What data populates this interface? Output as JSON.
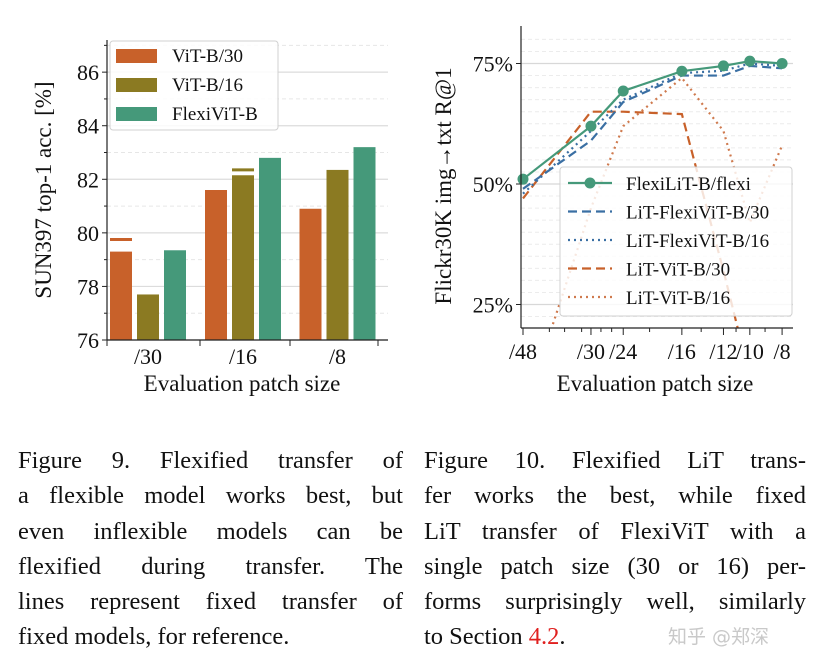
{
  "figure_left": {
    "caption_lines": [
      "Figure 9.  Flexified transfer of",
      "a flexible model works best, but",
      "even inflexible models can be",
      "flexified during transfer.  The",
      "lines represent fixed transfer of",
      "fixed models, for reference."
    ]
  },
  "figure_right": {
    "caption_lines": [
      "Figure 10.  Flexified LiT trans-",
      "fer works the best, while fixed",
      "LiT transfer of FlexiViT with a",
      "single patch size (30 or 16) per-",
      "forms surprisingly well, similarly"
    ],
    "caption_last_prefix": "to Section ",
    "caption_ref": "4.2",
    "caption_last_suffix": "."
  },
  "watermark": "知乎 @郑深",
  "chart_data": [
    {
      "type": "bar",
      "xlabel": "Evaluation patch size",
      "ylabel": "SUN397 top-1 acc. [%]",
      "categories": [
        "/30",
        "/16",
        "/8"
      ],
      "ylim": [
        76,
        87.2
      ],
      "yticks": [
        76,
        78,
        80,
        82,
        84,
        86
      ],
      "ytick_labels": [
        "76",
        "78",
        "80",
        "82",
        "84",
        "86"
      ],
      "grid": true,
      "legend_position": "top-left",
      "series": [
        {
          "name": "ViT-B/30",
          "color": "#c8612a",
          "values": [
            79.3,
            81.6,
            80.9
          ]
        },
        {
          "name": "ViT-B/16",
          "color": "#8b7a22",
          "values": [
            77.7,
            82.15,
            82.35
          ]
        },
        {
          "name": "FlexiViT-B",
          "color": "#45997a",
          "values": [
            79.35,
            82.8,
            83.2
          ]
        }
      ],
      "reference_lines": [
        {
          "series": "ViT-B/30",
          "category": "/30",
          "value": 79.75
        },
        {
          "series": "ViT-B/16",
          "category": "/16",
          "value": 82.35
        }
      ]
    },
    {
      "type": "line",
      "xlabel": "Evaluation patch size",
      "ylabel": "Flickr30K img→txt R@1",
      "x_scale": "log, reversed (patch size)",
      "x": [
        48,
        30,
        24,
        16,
        12,
        10,
        8
      ],
      "xtick_labels": [
        "/48",
        "/30",
        "/24",
        "/16",
        "/12",
        "/10",
        "/8"
      ],
      "minor_xticks": [
        40,
        36,
        32,
        28,
        26,
        20,
        14,
        11,
        9
      ],
      "ylim": [
        20,
        80
      ],
      "yticks": [
        25,
        50,
        75
      ],
      "ytick_labels": [
        "25%",
        "50%",
        "75%"
      ],
      "grid": true,
      "legend_position": "bottom-right",
      "series": [
        {
          "name": "FlexiLiT-B/flexi",
          "color": "#45997a",
          "style": "solid-marker",
          "values": [
            51,
            62,
            69.3,
            73.4,
            74.5,
            75.5,
            75
          ]
        },
        {
          "name": "LiT-FlexiViT-B/30",
          "color": "#3a6fa3",
          "style": "dashed",
          "values": [
            49,
            59,
            67,
            72.5,
            72.5,
            74.5,
            74
          ]
        },
        {
          "name": "LiT-FlexiViT-B/16",
          "color": "#3a6fa3",
          "style": "dotted",
          "values": [
            48,
            61,
            67.5,
            73,
            73.5,
            75,
            74.5
          ]
        },
        {
          "name": "LiT-ViT-B/30",
          "color": "#c8612a",
          "style": "dashed",
          "values": [
            47,
            65,
            65,
            64.5,
            32,
            10,
            5
          ]
        },
        {
          "name": "LiT-ViT-B/16",
          "color": "#cf7a4e",
          "style": "dotted",
          "values": [
            2,
            45,
            62,
            72,
            61,
            42,
            58
          ]
        }
      ]
    }
  ]
}
